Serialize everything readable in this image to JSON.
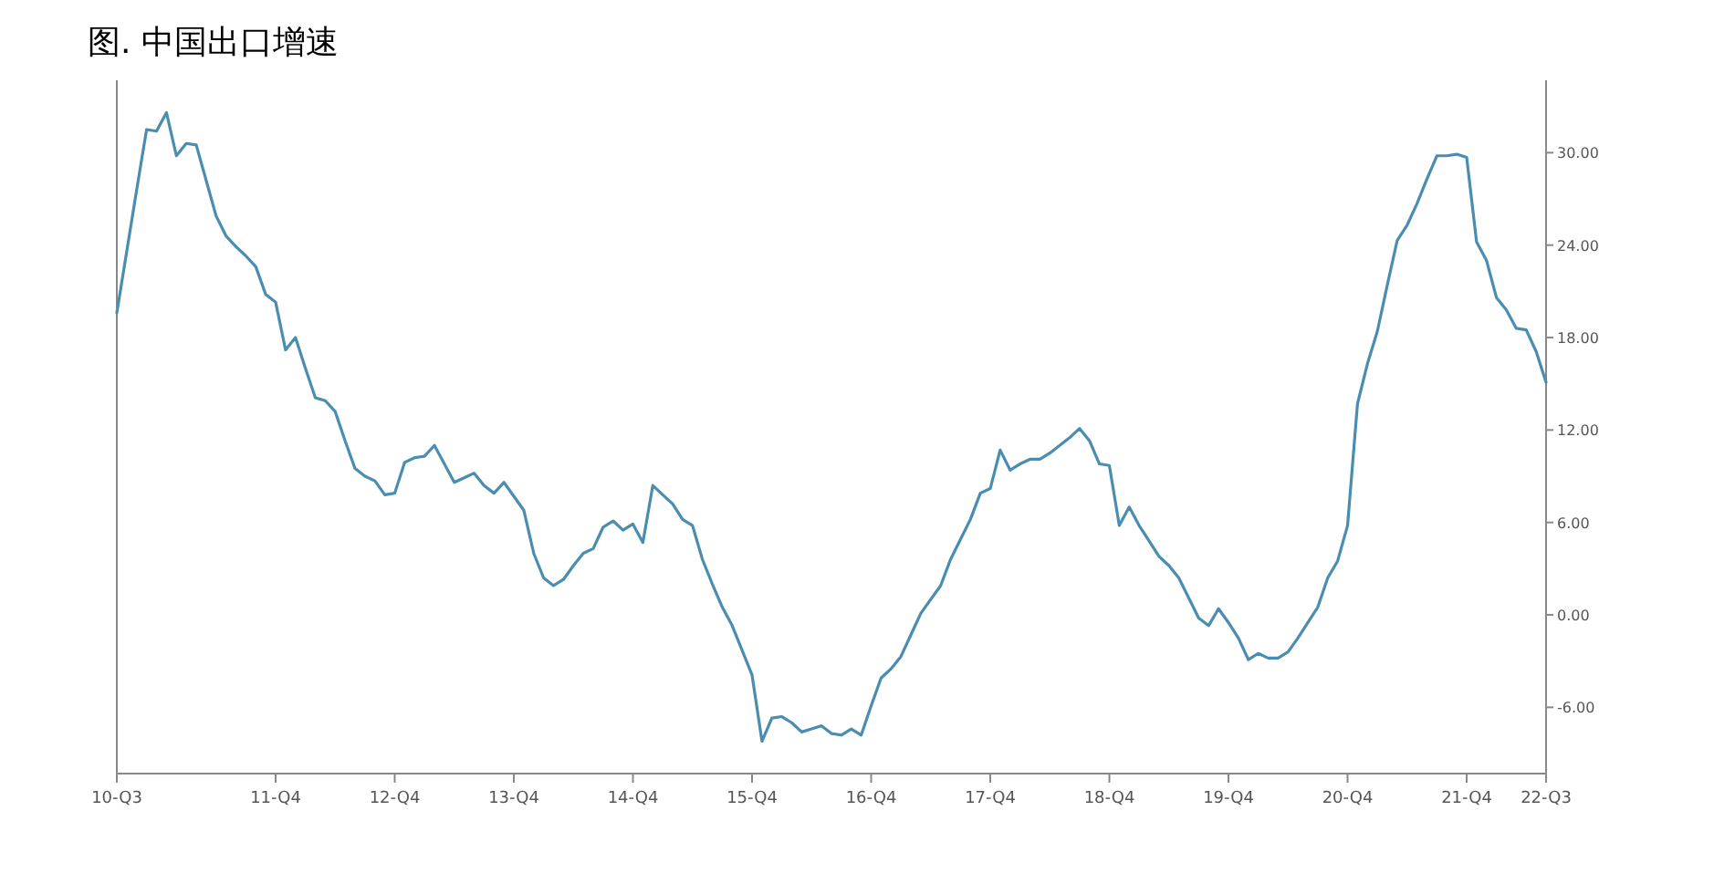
{
  "chart_data": {
    "type": "line",
    "title": "图. 中国出口增速",
    "categories": [
      "10-Q3",
      null,
      null,
      null,
      null,
      null,
      null,
      null,
      null,
      null,
      null,
      null,
      null,
      null,
      null,
      null,
      "11-Q4",
      null,
      null,
      null,
      null,
      null,
      null,
      null,
      null,
      null,
      null,
      null,
      "12-Q4",
      null,
      null,
      null,
      null,
      null,
      null,
      null,
      null,
      null,
      null,
      null,
      "13-Q4",
      null,
      null,
      null,
      null,
      null,
      null,
      null,
      null,
      null,
      null,
      null,
      "14-Q4",
      null,
      null,
      null,
      null,
      null,
      null,
      null,
      null,
      null,
      null,
      null,
      "15-Q4",
      null,
      null,
      null,
      null,
      null,
      null,
      null,
      null,
      null,
      null,
      null,
      "16-Q4",
      null,
      null,
      null,
      null,
      null,
      null,
      null,
      null,
      null,
      null,
      null,
      "17-Q4",
      null,
      null,
      null,
      null,
      null,
      null,
      null,
      null,
      null,
      null,
      null,
      "18-Q4",
      null,
      null,
      null,
      null,
      null,
      null,
      null,
      null,
      null,
      null,
      null,
      "19-Q4",
      null,
      null,
      null,
      null,
      null,
      null,
      null,
      null,
      null,
      null,
      null,
      "20-Q4",
      null,
      null,
      null,
      null,
      null,
      null,
      null,
      null,
      null,
      null,
      null,
      "21-Q4",
      null,
      null,
      null,
      null,
      null,
      null,
      null,
      "22-Q3"
    ],
    "series": [
      {
        "color": "#4a8db0",
        "values": [
          19.6,
          23.6,
          27.6,
          31.5,
          31.4,
          32.6,
          29.8,
          30.6,
          30.5,
          28.2,
          25.9,
          24.6,
          23.9,
          23.3,
          22.6,
          20.8,
          20.3,
          17.2,
          18.0,
          16.0,
          14.1,
          13.9,
          13.2,
          11.3,
          9.5,
          9.0,
          8.7,
          7.8,
          7.9,
          9.9,
          10.2,
          10.3,
          11.0,
          9.8,
          8.6,
          8.9,
          9.2,
          8.4,
          7.9,
          8.6,
          7.7,
          6.8,
          4.0,
          2.4,
          1.9,
          2.3,
          3.2,
          4.0,
          4.3,
          5.7,
          6.1,
          5.5,
          5.9,
          4.7,
          8.4,
          7.8,
          7.2,
          6.2,
          5.8,
          3.6,
          2.0,
          0.5,
          -0.7,
          -2.3,
          -3.9,
          -8.2,
          -6.7,
          -6.6,
          -7.0,
          -7.6,
          -7.4,
          -7.2,
          -7.7,
          -7.8,
          -7.4,
          -7.8,
          -5.9,
          -4.1,
          -3.5,
          -2.7,
          -1.3,
          0.1,
          1.0,
          1.9,
          3.6,
          4.9,
          6.2,
          7.9,
          8.2,
          10.7,
          9.4,
          9.8,
          10.1,
          10.1,
          10.5,
          11.0,
          11.5,
          12.1,
          11.3,
          9.8,
          9.7,
          5.8,
          7.0,
          5.8,
          4.8,
          3.8,
          3.2,
          2.4,
          1.1,
          -0.2,
          -0.7,
          0.4,
          -0.5,
          -1.5,
          -2.9,
          -2.5,
          -2.8,
          -2.8,
          -2.4,
          -1.5,
          -0.5,
          0.5,
          2.4,
          3.5,
          5.8,
          13.7,
          16.3,
          18.4,
          21.4,
          24.3,
          25.3,
          26.7,
          28.3,
          29.8,
          29.8,
          29.9,
          29.7,
          24.2,
          23.0,
          20.6,
          19.8,
          18.6,
          18.5,
          17.1,
          15.1
        ]
      }
    ],
    "ylim": [
      -10.3,
      34.7
    ],
    "yticks": [
      {
        "value": -6,
        "label": "-6.00"
      },
      {
        "value": 0,
        "label": "0.00"
      },
      {
        "value": 6,
        "label": "6.00"
      },
      {
        "value": 12,
        "label": "12.00"
      },
      {
        "value": 18,
        "label": "18.00"
      },
      {
        "value": 24,
        "label": "24.00"
      },
      {
        "value": 30,
        "label": "30.00"
      }
    ],
    "grid": false
  }
}
